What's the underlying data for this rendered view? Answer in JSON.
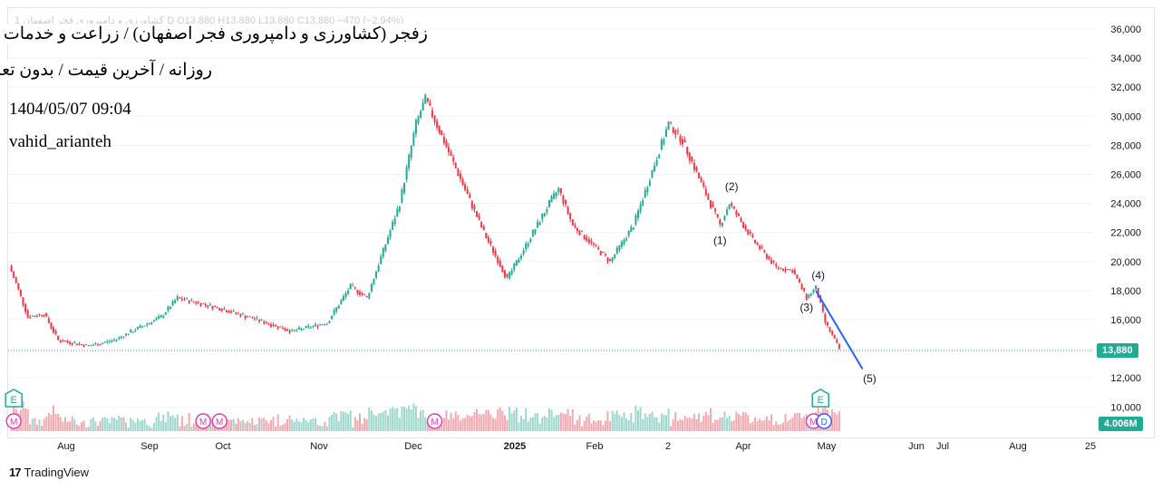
{
  "title_line_1": "زفجر (کشاورزی و دامپروری فجر اصفهان) / زراعت و خدمات وابسته",
  "title_line_2": "روزانه / آخرین قیمت / بدون تعدیل",
  "timestamp": "1404/05/07 09:04",
  "author": "vahid_arianteh",
  "legend_faded": "1 کشاورزی و دامپروری فجر اصفهان  D  O13,880  H13,880  L13,880  C13,880  −470 (−2.94%)",
  "brand": "TradingView",
  "last_price_label": "13,880",
  "volume_label": "4.006M",
  "colors": {
    "up": "#22ab94",
    "down": "#f23645",
    "volume_up": "#9ed8cc",
    "volume_down": "#f4a9b0",
    "wave_line": "#2962ff",
    "grid": "#f0f3fa",
    "axis_text": "#131722",
    "dividend_marker": "#22ab94",
    "meeting_marker": "#e040b0"
  },
  "chart_data": {
    "type": "candlestick",
    "y_axis": {
      "ticks": [
        10000,
        12000,
        14000,
        16000,
        18000,
        20000,
        22000,
        24000,
        26000,
        28000,
        30000,
        32000,
        34000,
        36000
      ],
      "tick_labels": [
        "10,000",
        "12,000",
        "",
        "16,000",
        "18,000",
        "20,000",
        "22,000",
        "24,000",
        "26,000",
        "28,000",
        "30,000",
        "32,000",
        "34,000",
        "36,000"
      ],
      "range": [
        8500,
        37000
      ]
    },
    "x_axis": {
      "labels": [
        "Aug",
        "Sep",
        "Oct",
        "Nov",
        "Dec",
        "2025",
        "Feb",
        "2",
        "Apr",
        "May",
        "Jun",
        "Jul",
        "Aug",
        "25"
      ],
      "bold_labels": [
        "2025"
      ]
    },
    "last_price": 13880,
    "volume_last": "4.006M",
    "price_anchors": [
      {
        "date": "2024-07-22",
        "close": 19700
      },
      {
        "date": "2024-07-25",
        "close": 18500
      },
      {
        "date": "2024-07-30",
        "close": 16200
      },
      {
        "date": "2024-08-06",
        "close": 16400
      },
      {
        "date": "2024-08-12",
        "close": 14600
      },
      {
        "date": "2024-08-25",
        "close": 14200
      },
      {
        "date": "2024-09-05",
        "close": 14600
      },
      {
        "date": "2024-09-25",
        "close": 16200
      },
      {
        "date": "2024-10-02",
        "close": 17500
      },
      {
        "date": "2024-10-20",
        "close": 16800
      },
      {
        "date": "2024-11-05",
        "close": 16000
      },
      {
        "date": "2024-11-20",
        "close": 15200
      },
      {
        "date": "2024-12-05",
        "close": 15800
      },
      {
        "date": "2024-12-15",
        "close": 18300
      },
      {
        "date": "2024-12-22",
        "close": 17500
      },
      {
        "date": "2025-01-05",
        "close": 24000
      },
      {
        "date": "2025-01-12",
        "close": 29500
      },
      {
        "date": "2025-01-16",
        "close": 31200
      },
      {
        "date": "2025-02-10",
        "close": 22000
      },
      {
        "date": "2025-02-20",
        "close": 18800
      },
      {
        "date": "2025-03-10",
        "close": 24000
      },
      {
        "date": "2025-03-14",
        "close": 25000
      },
      {
        "date": "2025-03-20",
        "close": 22500
      },
      {
        "date": "2025-04-05",
        "close": 20000
      },
      {
        "date": "2025-04-15",
        "close": 22500
      },
      {
        "date": "2025-04-30",
        "close": 29500
      },
      {
        "date": "2025-05-06",
        "close": 28300
      },
      {
        "date": "2025-05-15",
        "close": 25000
      },
      {
        "date": "2025-05-22",
        "close": 22500
      },
      {
        "date": "2025-05-26",
        "close": 24000
      },
      {
        "date": "2025-06-05",
        "close": 21500
      },
      {
        "date": "2025-06-15",
        "close": 19600
      },
      {
        "date": "2025-06-22",
        "close": 19400
      },
      {
        "date": "2025-06-28",
        "close": 17500
      },
      {
        "date": "2025-07-02",
        "close": 18200
      },
      {
        "date": "2025-07-06",
        "close": 15800
      },
      {
        "date": "2025-07-12",
        "close": 14000
      }
    ],
    "wave_labels": [
      {
        "label": "(1)",
        "date": "2025-05-22",
        "price": 21200
      },
      {
        "label": "(2)",
        "date": "2025-05-27",
        "price": 24900
      },
      {
        "label": "(3)",
        "date": "2025-06-28",
        "price": 16600
      },
      {
        "label": "(4)",
        "date": "2025-07-03",
        "price": 18800
      },
      {
        "label": "(5)",
        "date": "2025-07-25",
        "price": 11700
      }
    ],
    "wave_line": {
      "from": {
        "date": "2025-07-02",
        "price": 18000
      },
      "to": {
        "date": "2025-07-22",
        "price": 12600
      }
    },
    "event_markers": [
      {
        "type": "dividend",
        "text": "E",
        "date": "2024-07-24"
      },
      {
        "type": "meeting",
        "text": "M",
        "date": "2024-07-24"
      },
      {
        "type": "meeting",
        "text": "M",
        "date": "2024-10-13"
      },
      {
        "type": "meeting",
        "text": "M",
        "date": "2024-10-20"
      },
      {
        "type": "meeting",
        "text": "M",
        "date": "2025-01-20"
      },
      {
        "type": "dividend",
        "text": "E",
        "date": "2025-07-04"
      },
      {
        "type": "meeting",
        "text": "M",
        "date": "2025-07-01"
      },
      {
        "type": "split",
        "text": "D",
        "date": "2025-07-04"
      }
    ]
  }
}
